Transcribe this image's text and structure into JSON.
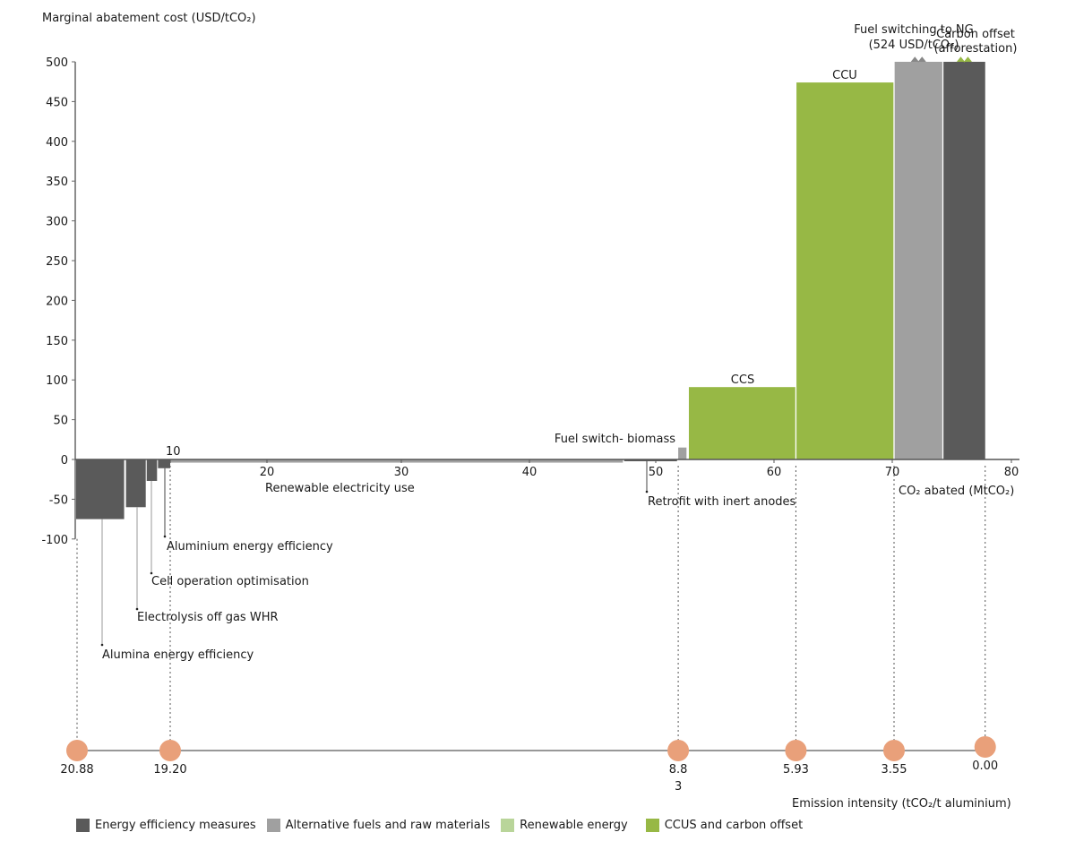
{
  "chart_data": {
    "type": "bar",
    "subtype": "marginal-abatement-cost-curve",
    "ylabel": "Marginal abatement cost (USD/tCO₂)",
    "xlabel": "CO₂ abated (MtCO₂)",
    "ylim": [
      -100,
      500
    ],
    "xlim": [
      0,
      80
    ],
    "yticks": [
      500,
      450,
      400,
      350,
      300,
      250,
      200,
      150,
      100,
      50,
      0,
      -50,
      -100
    ],
    "xticks": [
      10,
      20,
      30,
      40,
      50,
      60,
      70,
      80
    ],
    "grid": false,
    "series": [
      {
        "name": "Alumina energy efficiency",
        "category": "Energy efficiency measures",
        "x_start": 0,
        "x_end": 5.1,
        "value": -75
      },
      {
        "name": "Electrolysis off gas WHR",
        "category": "Energy efficiency measures",
        "x_start": 5.3,
        "x_end": 7.4,
        "value": -60
      },
      {
        "name": "Cell operation optimisation",
        "category": "Energy efficiency measures",
        "x_start": 7.5,
        "x_end": 8.6,
        "value": -27
      },
      {
        "name": "Aluminium energy efficiency",
        "category": "Energy efficiency measures",
        "x_start": 8.7,
        "x_end": 10.0,
        "value": -11
      },
      {
        "name": "Renewable electricity use",
        "category": "Alternative fuels and raw materials",
        "x_start": 10.0,
        "x_end": 47.4,
        "value": -4
      },
      {
        "name": "Retrofit with inert anodes",
        "category": "Energy efficiency measures",
        "x_start": 47.5,
        "x_end": 51.8,
        "value": -2
      },
      {
        "name": "Fuel switch- biomass",
        "category": "Alternative fuels and raw materials",
        "x_start": 51.9,
        "x_end": 52.6,
        "value": 15
      },
      {
        "name": "CCS",
        "category": "CCUS and carbon offset",
        "x_start": 52.8,
        "x_end": 61.8,
        "value": 91
      },
      {
        "name": "CCU",
        "category": "CCUS and carbon offset",
        "x_start": 61.9,
        "x_end": 70.1,
        "value": 474
      },
      {
        "name": "Fuel switching to NG",
        "category": "Alternative fuels and raw materials",
        "x_start": 70.2,
        "x_end": 74.2,
        "value": 524,
        "display_capped": 500,
        "broken_axis": true
      },
      {
        "name": "Carbon offset (afforestation)",
        "category": "Energy efficiency measures",
        "x_start": 74.3,
        "x_end": 77.8,
        "value": 500,
        "display_capped": 500,
        "broken_axis": true
      }
    ],
    "labels": {
      "ten_marker": "10",
      "fuel_ng_line1": "Fuel switching to NG",
      "fuel_ng_line2": "(524 USD/tCO₂)",
      "offset_line1": "Carbon offset",
      "offset_line2": "(afforestation)"
    },
    "emission_intensity": {
      "label": "Emission intensity (tCO₂/t aluminium)",
      "points": [
        {
          "x": 0,
          "label": "20.88"
        },
        {
          "x": 10.0,
          "label": "19.20"
        },
        {
          "x": 51.9,
          "label": "8.8",
          "label2": "3"
        },
        {
          "x": 61.85,
          "label": "5.93"
        },
        {
          "x": 70.15,
          "label": "3.55"
        },
        {
          "x": 77.8,
          "label": "0.00"
        }
      ]
    },
    "legend": {
      "placement": "bottom-left",
      "items": [
        {
          "label": "Energy efficiency measures",
          "color": "#5a5a5a"
        },
        {
          "label": "Alternative fuels and raw materials",
          "color": "#a0a0a0"
        },
        {
          "label": "Renewable energy",
          "color": "#b9d59a"
        },
        {
          "label": "CCUS and carbon offset",
          "color": "#97b845"
        }
      ]
    },
    "colors": {
      "Energy efficiency measures": "#5a5a5a",
      "Alternative fuels and raw materials": "#a0a0a0",
      "Renewable energy": "#b9d59a",
      "CCUS and carbon offset": "#97b845",
      "intensity_marker": "#e9a07a"
    }
  }
}
